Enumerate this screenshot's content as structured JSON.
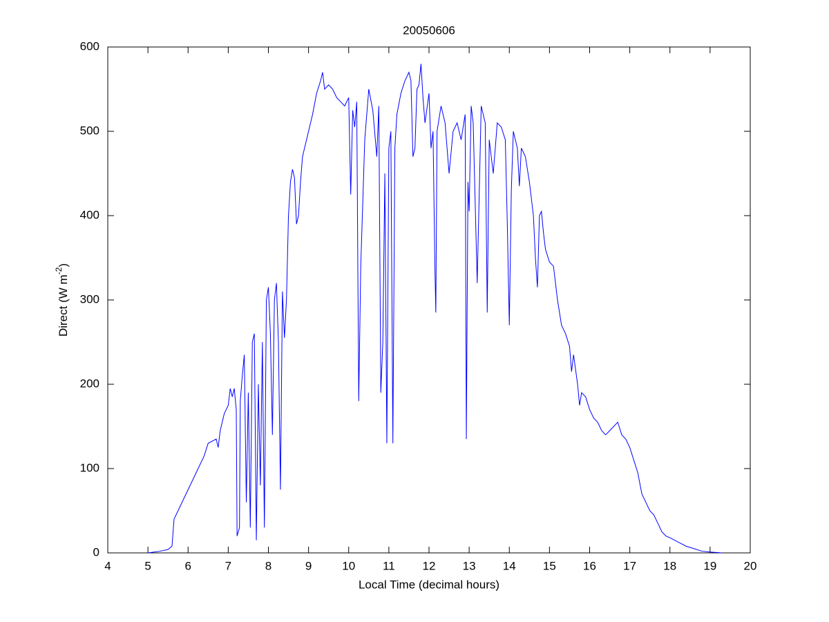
{
  "chart_data": {
    "type": "line",
    "title": "20050606",
    "xlabel": "Local Time (decimal hours)",
    "ylabel": [
      "Direct (W m",
      "-2",
      ")"
    ],
    "color": "#0000ff",
    "grid": false,
    "xlim": [
      4,
      20
    ],
    "xticks": [
      4,
      5,
      6,
      7,
      8,
      9,
      10,
      11,
      12,
      13,
      14,
      15,
      16,
      17,
      18,
      19,
      20
    ],
    "ylim": [
      0,
      600
    ],
    "yticks": [
      0,
      100,
      200,
      300,
      400,
      500,
      600
    ],
    "x": [
      5.0,
      5.3,
      5.5,
      5.6,
      5.65,
      5.8,
      6.0,
      6.2,
      6.4,
      6.5,
      6.7,
      6.75,
      6.8,
      6.9,
      7.0,
      7.05,
      7.1,
      7.15,
      7.2,
      7.22,
      7.28,
      7.3,
      7.35,
      7.4,
      7.45,
      7.5,
      7.55,
      7.6,
      7.65,
      7.7,
      7.75,
      7.8,
      7.85,
      7.9,
      7.95,
      8.0,
      8.05,
      8.1,
      8.15,
      8.2,
      8.25,
      8.3,
      8.35,
      8.4,
      8.45,
      8.5,
      8.55,
      8.6,
      8.65,
      8.7,
      8.75,
      8.8,
      8.85,
      8.9,
      9.0,
      9.1,
      9.2,
      9.3,
      9.35,
      9.4,
      9.5,
      9.6,
      9.7,
      9.8,
      9.9,
      10.0,
      10.05,
      10.1,
      10.15,
      10.2,
      10.25,
      10.3,
      10.4,
      10.5,
      10.6,
      10.7,
      10.75,
      10.8,
      10.85,
      10.9,
      10.95,
      11.0,
      11.05,
      11.1,
      11.15,
      11.2,
      11.3,
      11.4,
      11.5,
      11.55,
      11.6,
      11.65,
      11.7,
      11.75,
      11.8,
      11.85,
      11.9,
      12.0,
      12.05,
      12.1,
      12.15,
      12.17,
      12.2,
      12.3,
      12.4,
      12.5,
      12.6,
      12.7,
      12.8,
      12.9,
      12.93,
      12.97,
      13.0,
      13.05,
      13.1,
      13.2,
      13.3,
      13.4,
      13.45,
      13.5,
      13.6,
      13.7,
      13.8,
      13.9,
      13.95,
      14.0,
      14.05,
      14.1,
      14.2,
      14.25,
      14.3,
      14.4,
      14.5,
      14.6,
      14.65,
      14.7,
      14.75,
      14.8,
      14.85,
      14.9,
      15.0,
      15.1,
      15.2,
      15.3,
      15.4,
      15.5,
      15.55,
      15.6,
      15.7,
      15.75,
      15.8,
      15.9,
      16.0,
      16.1,
      16.2,
      16.3,
      16.4,
      16.5,
      16.6,
      16.7,
      16.8,
      16.9,
      17.0,
      17.1,
      17.2,
      17.3,
      17.4,
      17.5,
      17.6,
      17.7,
      17.8,
      17.9,
      18.0,
      18.2,
      18.4,
      18.6,
      18.8,
      19.0,
      19.3
    ],
    "values": [
      0,
      2,
      4,
      8,
      40,
      55,
      75,
      95,
      115,
      130,
      135,
      125,
      145,
      165,
      175,
      195,
      185,
      195,
      170,
      20,
      30,
      180,
      210,
      235,
      60,
      190,
      30,
      250,
      260,
      15,
      200,
      80,
      250,
      30,
      300,
      315,
      260,
      140,
      300,
      320,
      250,
      75,
      310,
      255,
      300,
      400,
      440,
      455,
      445,
      390,
      400,
      440,
      470,
      480,
      500,
      520,
      545,
      560,
      570,
      550,
      555,
      550,
      540,
      535,
      530,
      540,
      425,
      525,
      505,
      535,
      180,
      340,
      490,
      550,
      525,
      470,
      530,
      190,
      250,
      450,
      130,
      480,
      500,
      130,
      480,
      520,
      545,
      560,
      570,
      560,
      470,
      480,
      550,
      555,
      580,
      540,
      510,
      545,
      480,
      500,
      330,
      285,
      500,
      530,
      510,
      450,
      500,
      510,
      490,
      520,
      135,
      440,
      405,
      530,
      510,
      320,
      530,
      510,
      285,
      490,
      450,
      510,
      505,
      490,
      390,
      270,
      430,
      500,
      480,
      435,
      480,
      470,
      440,
      400,
      350,
      315,
      400,
      405,
      380,
      360,
      345,
      340,
      300,
      270,
      260,
      245,
      215,
      235,
      200,
      175,
      190,
      185,
      170,
      160,
      155,
      145,
      140,
      145,
      150,
      155,
      140,
      135,
      125,
      110,
      95,
      70,
      60,
      50,
      45,
      35,
      25,
      20,
      18,
      13,
      8,
      5,
      2,
      1,
      0
    ]
  }
}
